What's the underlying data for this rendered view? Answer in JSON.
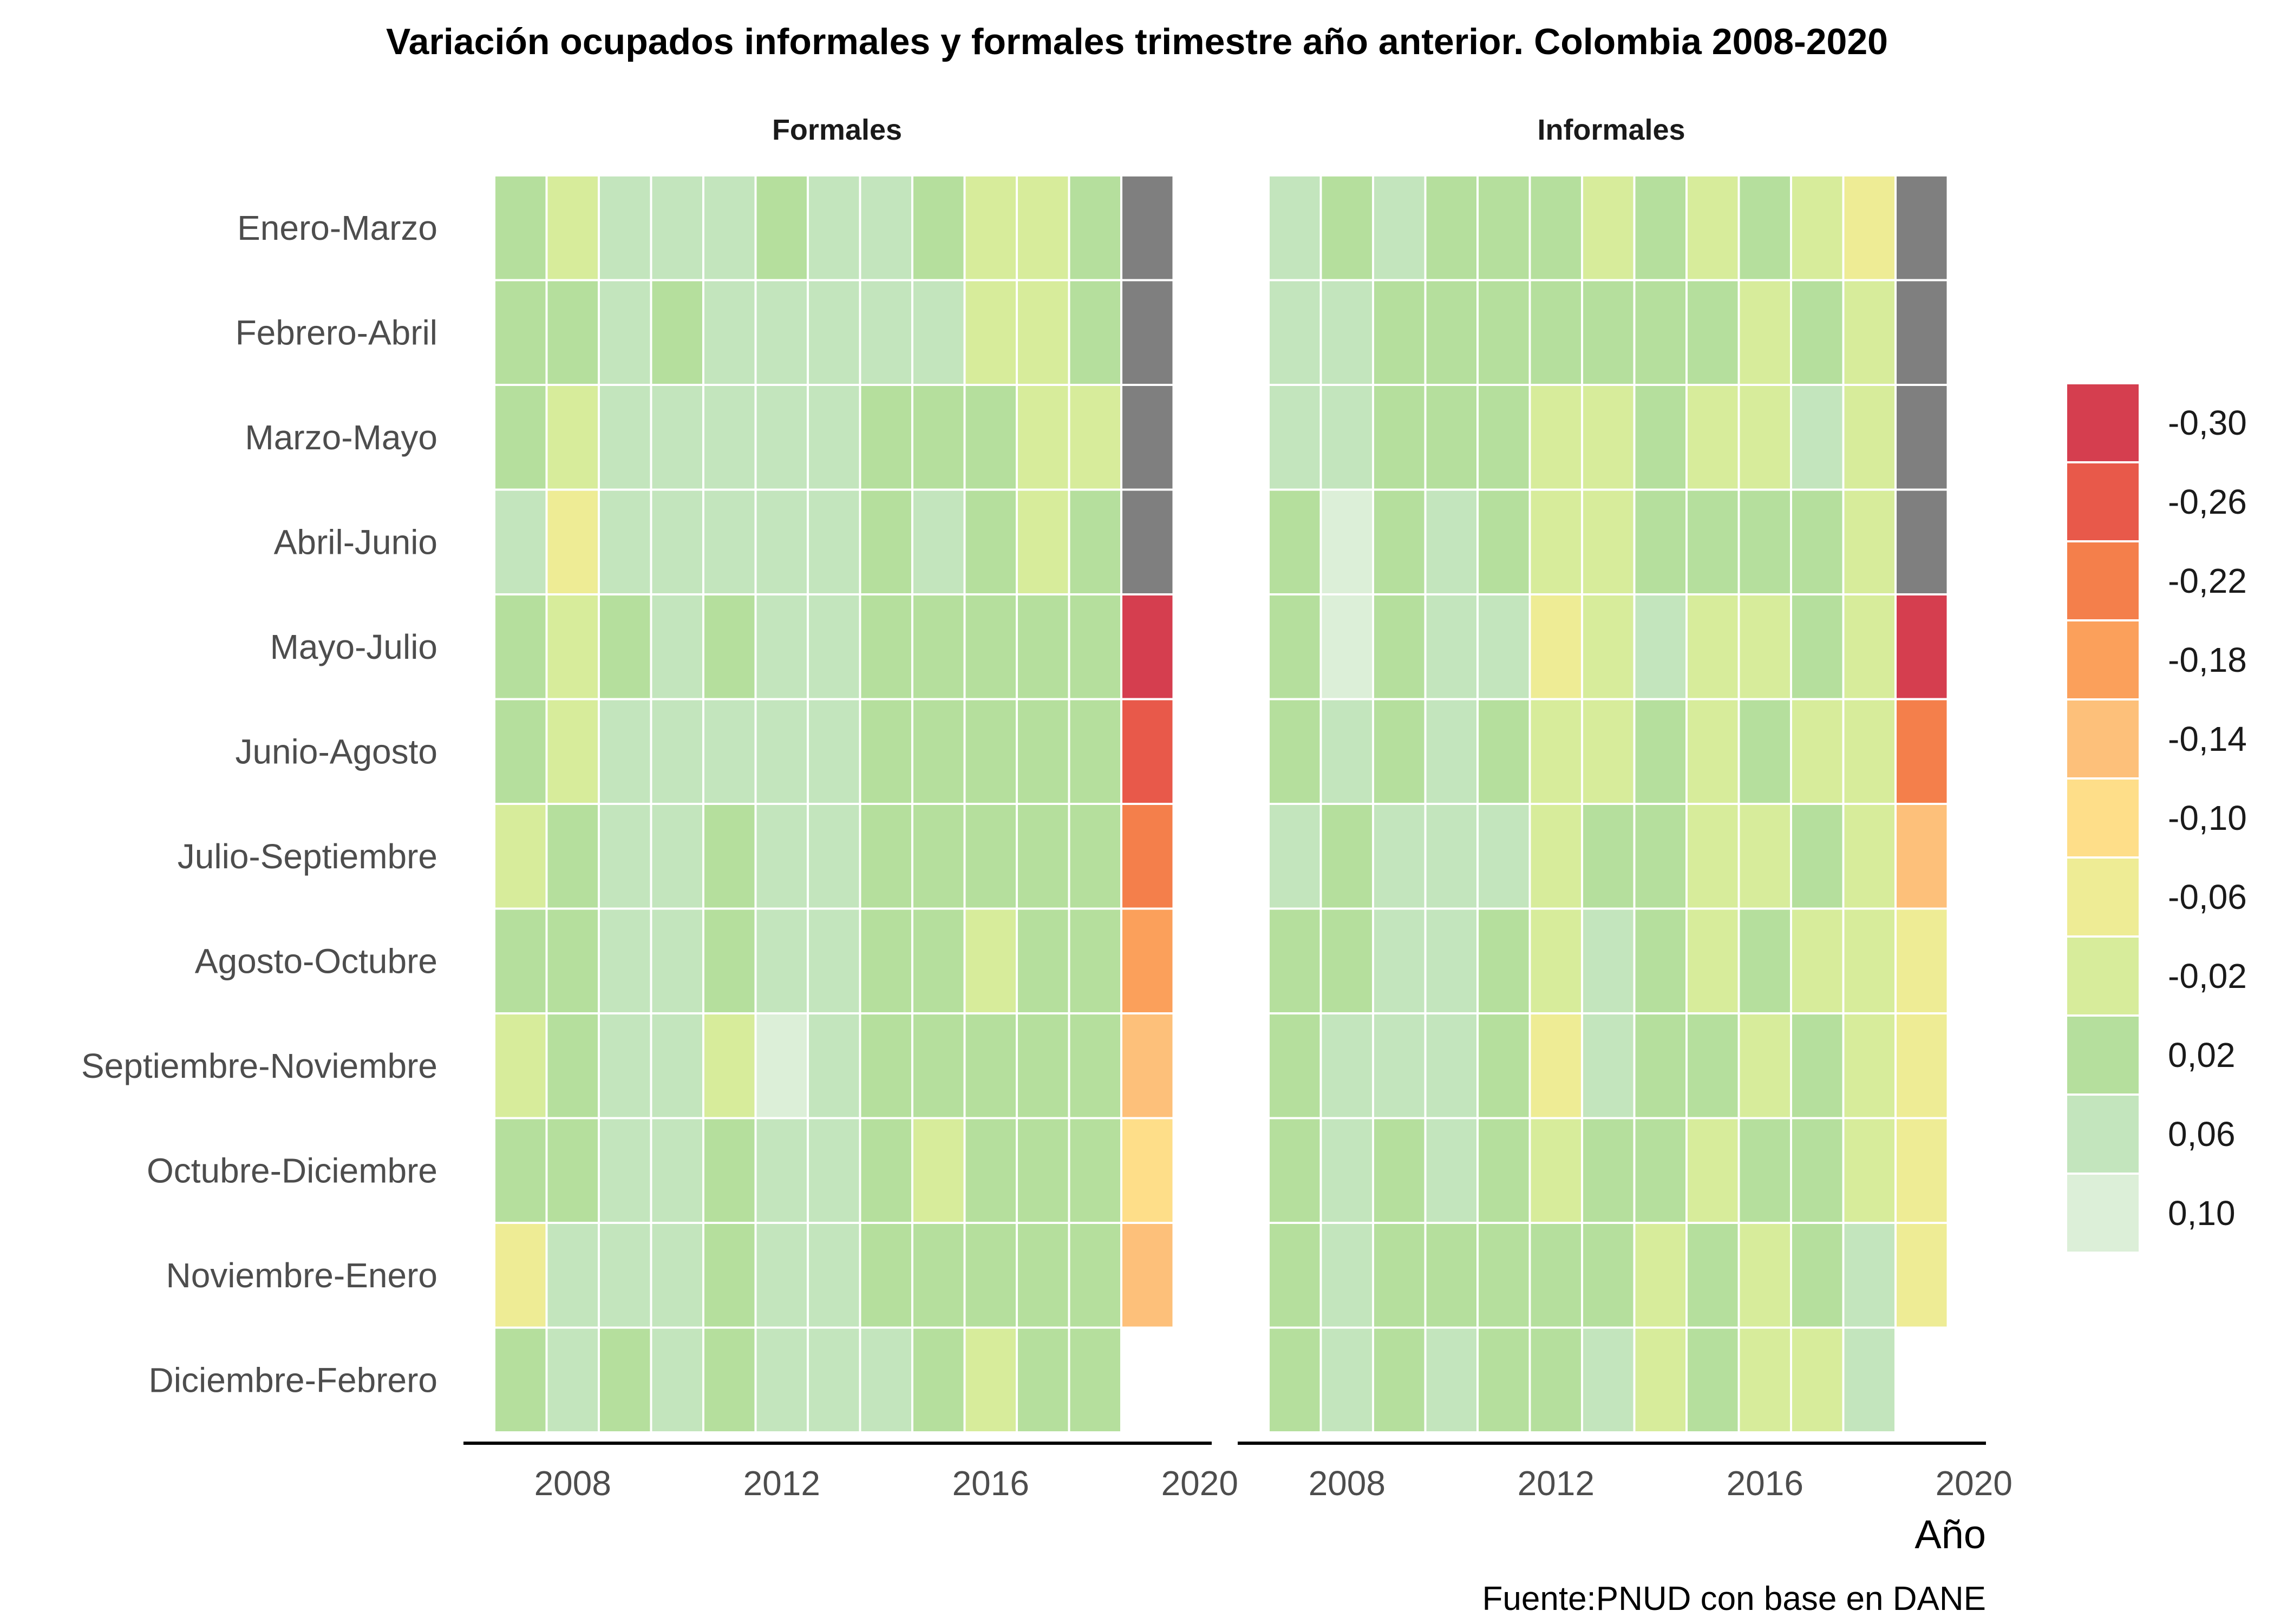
{
  "chart_data": {
    "type": "heatmap",
    "title": "Variación ocupados informales y formales trimestre año anterior. Colombia 2008-2020",
    "xlabel": "Año",
    "caption": "Fuente:PNUD con base en DANE",
    "x_ticks": [
      "2008",
      "2012",
      "2016",
      "2020"
    ],
    "years": [
      2007,
      2008,
      2009,
      2010,
      2011,
      2012,
      2013,
      2014,
      2015,
      2016,
      2017,
      2018,
      2019
    ],
    "rows": [
      "Enero-Marzo",
      "Febrero-Abril",
      "Marzo-Mayo",
      "Abril-Junio",
      "Mayo-Julio",
      "Junio-Agosto",
      "Julio-Septiembre",
      "Agosto-Octubre",
      "Septiembre-Noviembre",
      "Octubre-Diciembre",
      "Noviembre-Enero",
      "Diciembre-Febrero"
    ],
    "missing_color": "#7f7f7f",
    "legend": {
      "position": "right",
      "ticks": [
        "-0,30",
        "-0,26",
        "-0,22",
        "-0,18",
        "-0,14",
        "-0,10",
        "-0,06",
        "-0,02",
        "0,02",
        "0,06",
        "0,10"
      ],
      "values": [
        -0.3,
        -0.26,
        -0.22,
        -0.18,
        -0.14,
        -0.1,
        -0.06,
        -0.02,
        0.02,
        0.06,
        0.1
      ],
      "colors": [
        "#d53e4f",
        "#e8594a",
        "#f47f4b",
        "#fba05b",
        "#fdc07a",
        "#fede89",
        "#eeec95",
        "#d7ec9b",
        "#b5df9d",
        "#c3e5bd",
        "#dcefd8"
      ]
    },
    "panels": [
      {
        "name": "Formales",
        "values": [
          [
            0.03,
            -0.01,
            0.05,
            0.04,
            0.06,
            0.03,
            0.04,
            0.05,
            0.03,
            0.0,
            -0.01,
            0.02,
            null
          ],
          [
            0.03,
            0.01,
            0.06,
            0.03,
            0.06,
            0.04,
            0.05,
            0.04,
            0.04,
            0.0,
            -0.01,
            0.01,
            null
          ],
          [
            0.03,
            -0.02,
            0.05,
            0.05,
            0.04,
            0.04,
            0.04,
            0.03,
            0.02,
            0.02,
            0.0,
            -0.01,
            null
          ],
          [
            0.04,
            -0.04,
            0.04,
            0.04,
            0.05,
            0.05,
            0.04,
            0.02,
            0.04,
            0.02,
            0.0,
            0.01,
            null
          ],
          [
            0.02,
            -0.01,
            0.03,
            0.05,
            0.03,
            0.08,
            0.04,
            0.01,
            0.02,
            0.03,
            0.02,
            0.01,
            -0.29
          ],
          [
            0.02,
            0.0,
            0.04,
            0.04,
            0.04,
            0.05,
            0.04,
            0.02,
            0.02,
            0.03,
            0.02,
            0.01,
            -0.25
          ],
          [
            0.0,
            0.03,
            0.05,
            0.05,
            0.02,
            0.07,
            0.04,
            0.02,
            0.03,
            0.01,
            0.03,
            0.01,
            -0.22
          ],
          [
            0.01,
            0.02,
            0.05,
            0.05,
            0.03,
            0.06,
            0.04,
            0.03,
            0.02,
            -0.01,
            0.02,
            0.02,
            -0.18
          ],
          [
            -0.03,
            0.03,
            0.05,
            0.06,
            0.0,
            0.09,
            0.04,
            0.03,
            0.01,
            0.01,
            0.02,
            0.02,
            -0.15
          ],
          [
            0.01,
            0.03,
            0.05,
            0.04,
            0.03,
            0.06,
            0.05,
            0.02,
            0.0,
            0.01,
            0.02,
            0.02,
            -0.11
          ],
          [
            -0.04,
            0.05,
            0.05,
            0.04,
            0.03,
            0.06,
            0.04,
            0.03,
            0.02,
            0.01,
            0.02,
            0.02,
            -0.14
          ],
          [
            0.01,
            0.05,
            0.03,
            0.05,
            0.03,
            0.05,
            0.04,
            0.04,
            0.02,
            -0.01,
            0.03,
            0.01,
            null
          ]
        ]
      },
      {
        "name": "Informales",
        "values": [
          [
            0.06,
            0.03,
            0.04,
            0.02,
            0.03,
            0.01,
            0.0,
            0.03,
            -0.01,
            0.01,
            0.0,
            -0.04,
            null
          ],
          [
            0.07,
            0.04,
            0.01,
            0.03,
            0.02,
            0.01,
            0.01,
            0.02,
            0.02,
            0.0,
            0.01,
            -0.02,
            null
          ],
          [
            0.06,
            0.06,
            0.02,
            0.03,
            0.03,
            0.0,
            0.0,
            0.02,
            -0.01,
            0.0,
            0.04,
            -0.02,
            null
          ],
          [
            0.01,
            0.1,
            0.02,
            0.04,
            0.03,
            -0.02,
            0.0,
            0.03,
            0.01,
            0.01,
            0.02,
            -0.01,
            null
          ],
          [
            0.03,
            0.09,
            0.02,
            0.04,
            0.05,
            -0.04,
            -0.01,
            0.04,
            -0.01,
            0.0,
            0.02,
            -0.01,
            -0.29
          ],
          [
            0.03,
            0.06,
            0.03,
            0.04,
            0.02,
            -0.01,
            0.0,
            0.02,
            -0.01,
            0.01,
            0.0,
            -0.01,
            -0.22
          ],
          [
            0.06,
            0.03,
            0.05,
            0.04,
            0.05,
            -0.02,
            0.01,
            0.02,
            0.0,
            0.0,
            0.01,
            -0.02,
            -0.14
          ],
          [
            0.03,
            0.03,
            0.05,
            0.04,
            0.03,
            -0.01,
            0.05,
            0.01,
            0.0,
            0.01,
            0.0,
            -0.01,
            -0.07
          ],
          [
            0.02,
            0.04,
            0.05,
            0.04,
            0.03,
            -0.04,
            0.06,
            0.01,
            0.02,
            0.0,
            0.01,
            -0.01,
            -0.05
          ],
          [
            0.01,
            0.07,
            0.03,
            0.04,
            0.02,
            0.0,
            0.02,
            0.01,
            0.0,
            0.01,
            0.02,
            0.0,
            -0.04
          ],
          [
            0.02,
            0.06,
            0.02,
            0.03,
            0.02,
            0.01,
            0.02,
            0.0,
            0.01,
            0.0,
            0.02,
            0.04,
            -0.05
          ],
          [
            0.03,
            0.04,
            0.03,
            0.04,
            0.02,
            0.02,
            0.04,
            -0.02,
            0.01,
            -0.01,
            -0.02,
            0.05,
            null
          ]
        ]
      }
    ]
  }
}
